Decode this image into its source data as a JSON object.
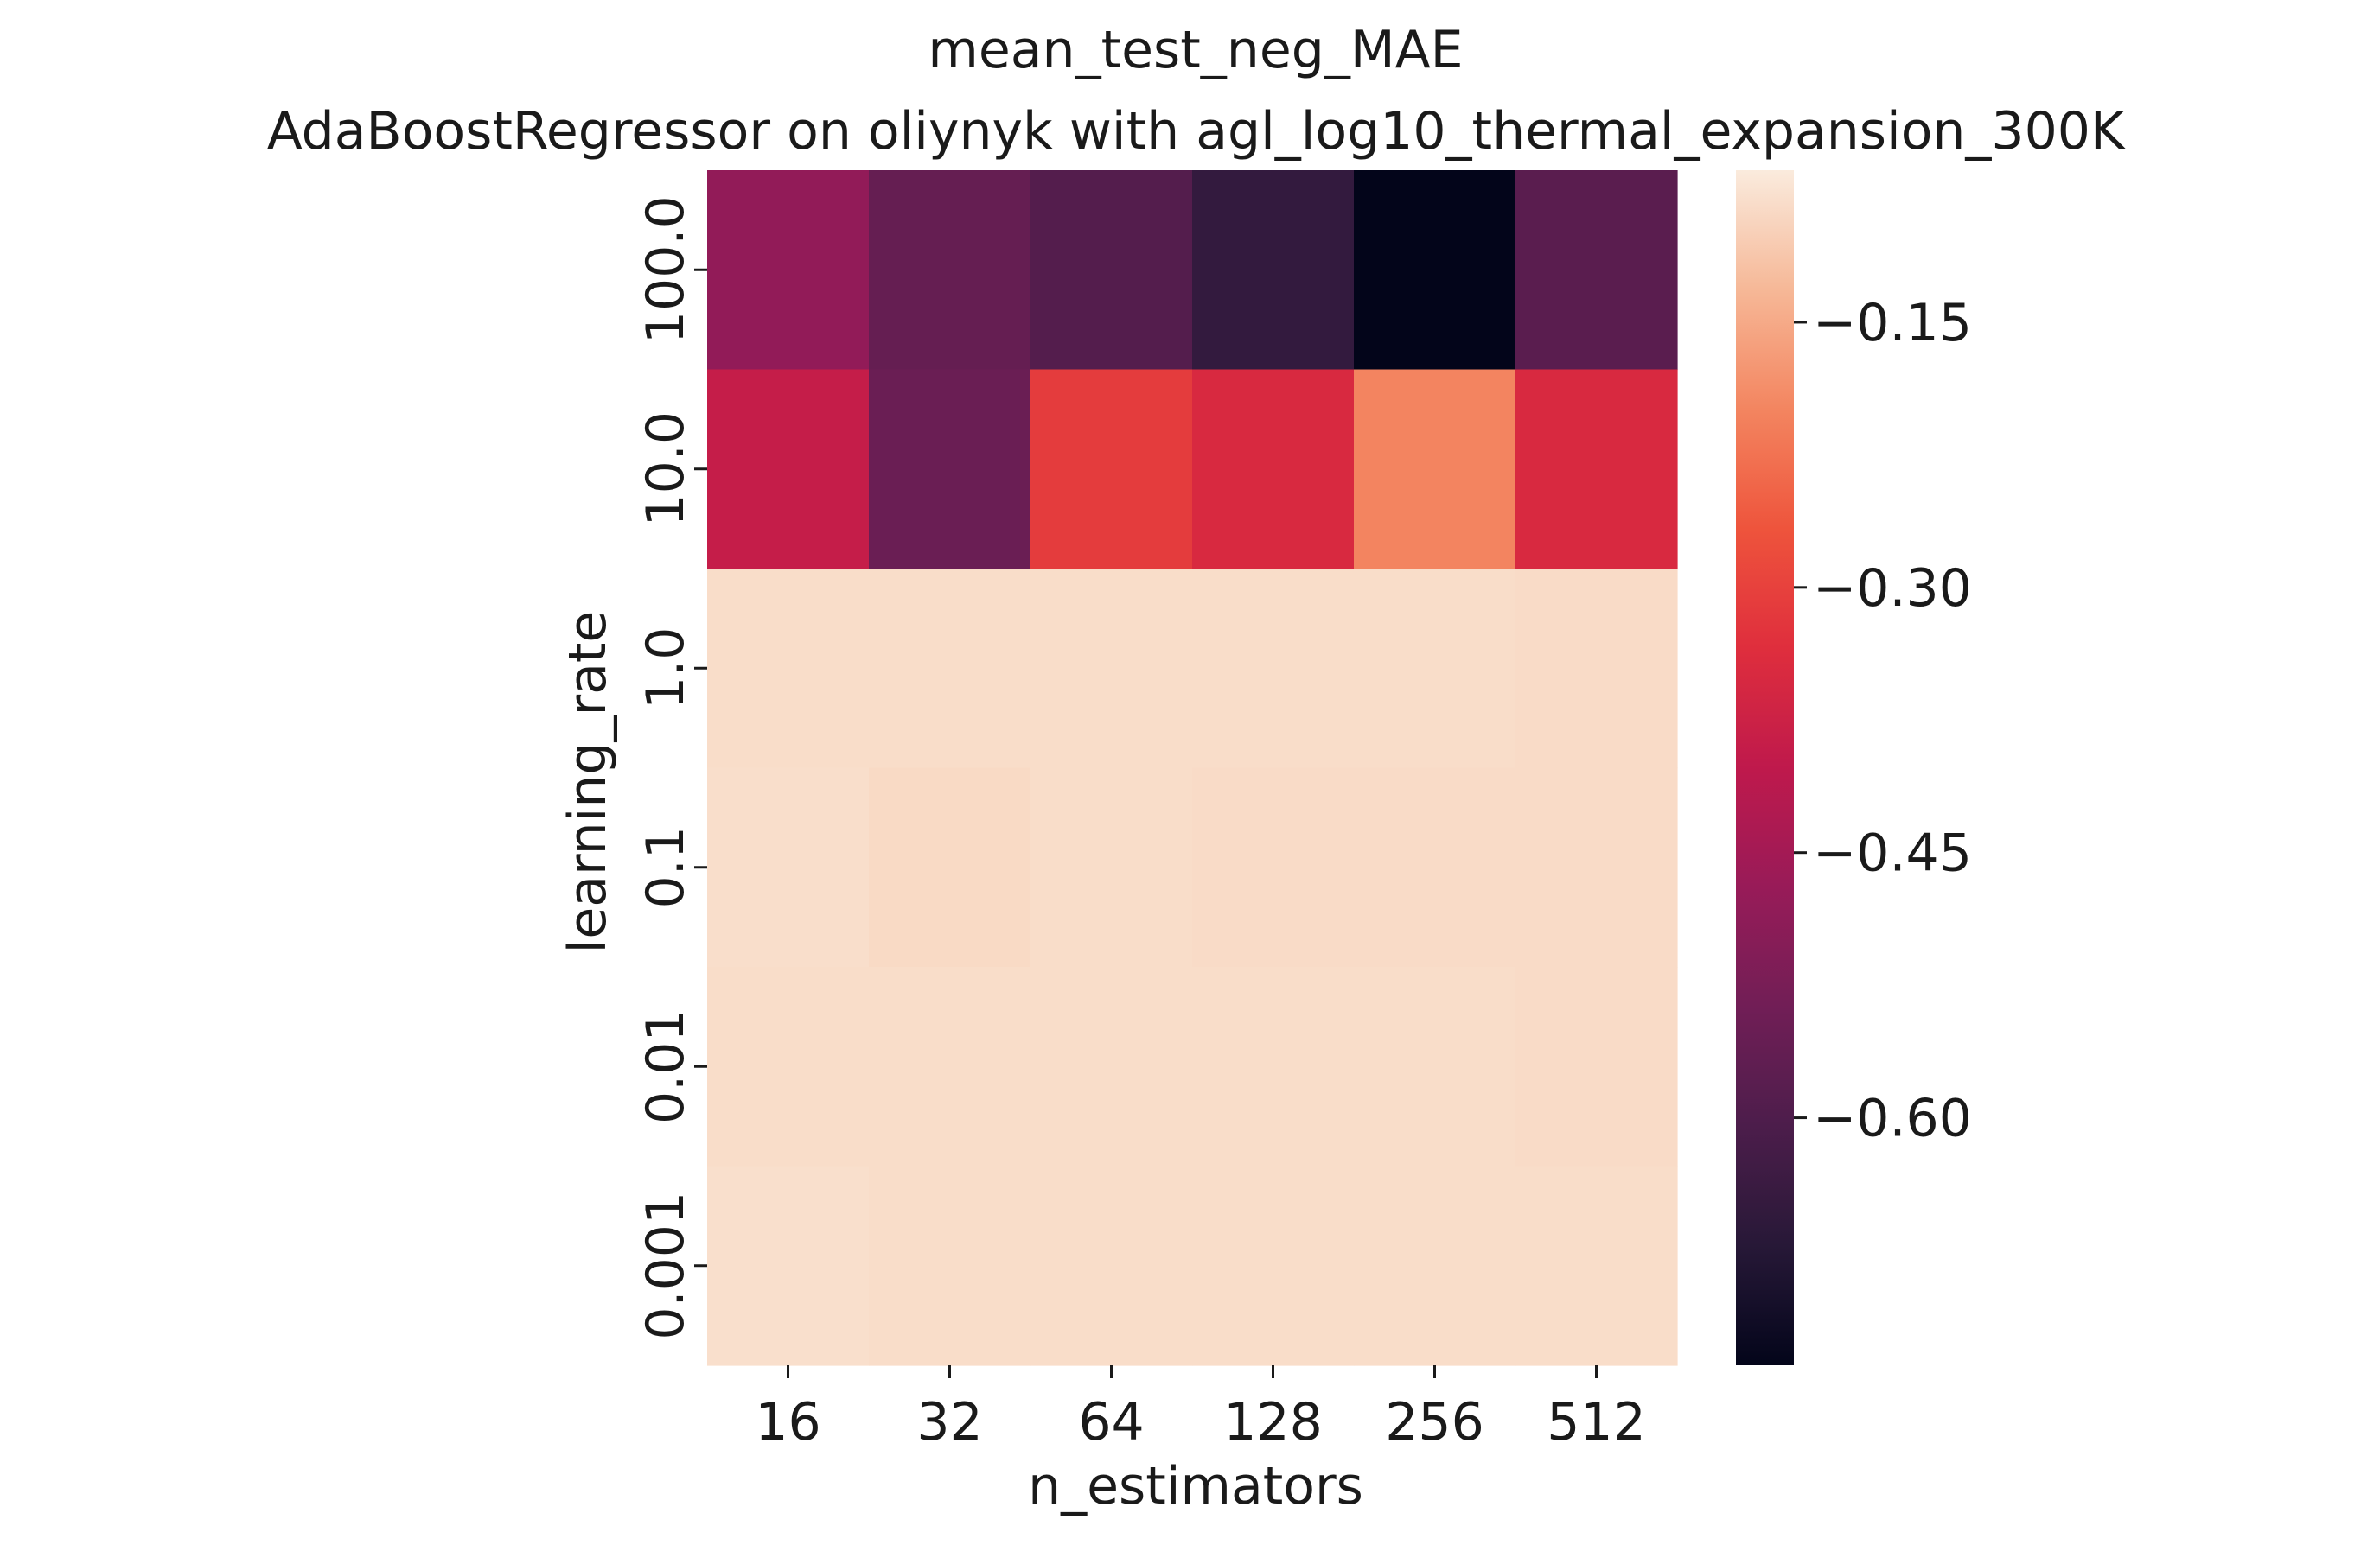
{
  "chart_data": {
    "type": "heatmap",
    "title": "mean_test_neg_MAE",
    "subtitle": "AdaBoostRegressor on oliynyk with agl_log10_thermal_expansion_300K",
    "xlabel": "n_estimators",
    "ylabel": "learning_rate",
    "x_categories": [
      "16",
      "32",
      "64",
      "128",
      "256",
      "512"
    ],
    "y_categories": [
      "100.0",
      "10.0",
      "1.0",
      "0.1",
      "0.01",
      "0.001"
    ],
    "values": [
      [
        -0.48,
        -0.56,
        -0.59,
        -0.65,
        -0.74,
        -0.58
      ],
      [
        -0.39,
        -0.55,
        -0.31,
        -0.35,
        -0.2,
        -0.35
      ],
      [
        -0.083,
        -0.083,
        -0.083,
        -0.083,
        -0.083,
        -0.085
      ],
      [
        -0.081,
        -0.087,
        -0.083,
        -0.085,
        -0.085,
        -0.085
      ],
      [
        -0.083,
        -0.083,
        -0.083,
        -0.083,
        -0.083,
        -0.085
      ],
      [
        -0.08,
        -0.083,
        -0.083,
        -0.083,
        -0.083,
        -0.083
      ]
    ],
    "colorbar": {
      "vmin": -0.74,
      "vmax": -0.064,
      "ticks": [
        "−0.15",
        "−0.30",
        "−0.45",
        "−0.60"
      ],
      "tick_values": [
        -0.15,
        -0.3,
        -0.45,
        -0.6
      ],
      "colormap": "rocket"
    },
    "grid": false,
    "legend": "none"
  }
}
